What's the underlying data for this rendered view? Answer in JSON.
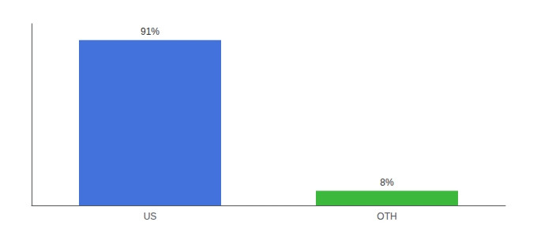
{
  "chart_data": {
    "type": "bar",
    "categories": [
      "US",
      "OTH"
    ],
    "values": [
      91,
      8
    ],
    "colors": [
      "#4472DD",
      "#3CB83C"
    ],
    "data_labels": true,
    "value_labels": [
      "91%",
      "8%"
    ],
    "ylim": [
      0,
      100
    ],
    "yticks": [],
    "tick_labels": "x",
    "grid": false
  }
}
